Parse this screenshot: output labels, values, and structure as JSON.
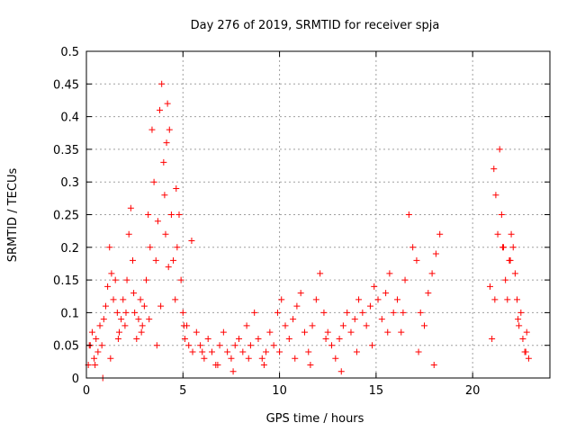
{
  "chart_data": {
    "type": "scatter",
    "title": "Day 276 of 2019, SRMTID for receiver spja",
    "xlabel": "GPS time / hours",
    "ylabel": "SRMTID / TECUs",
    "xlim": [
      0,
      24
    ],
    "ylim": [
      0,
      0.5
    ],
    "x_ticks": [
      0,
      5,
      10,
      15,
      20
    ],
    "x_tick_labels": [
      "0",
      "5",
      "10",
      "15",
      "20"
    ],
    "y_ticks": [
      0,
      0.05,
      0.1,
      0.15,
      0.2,
      0.25,
      0.3,
      0.35,
      0.4,
      0.45,
      0.5
    ],
    "y_tick_labels": [
      "0",
      "0.05",
      "0.1",
      "0.15",
      "0.2",
      "0.25",
      "0.3",
      "0.35",
      "0.4",
      "0.45",
      "0.5"
    ],
    "grid": true,
    "marker": "+",
    "color": "#ff0000",
    "series": [
      {
        "name": "SRMTID",
        "x": [
          0.1,
          0.2,
          0.3,
          0.4,
          0.5,
          0.6,
          0.7,
          0.8,
          0.9,
          1.0,
          1.1,
          1.2,
          1.3,
          1.4,
          1.5,
          1.6,
          1.7,
          1.8,
          1.9,
          2.0,
          2.1,
          2.2,
          2.3,
          2.4,
          2.5,
          2.6,
          2.7,
          2.8,
          2.9,
          3.0,
          3.1,
          3.2,
          3.3,
          3.4,
          3.5,
          3.6,
          3.7,
          3.8,
          3.9,
          4.0,
          4.05,
          4.1,
          4.15,
          4.2,
          4.3,
          4.4,
          4.5,
          4.6,
          4.7,
          4.8,
          4.9,
          5.0,
          5.1,
          5.2,
          5.3,
          5.5,
          5.7,
          5.9,
          6.1,
          6.3,
          6.5,
          6.7,
          6.9,
          7.1,
          7.3,
          7.5,
          7.7,
          7.9,
          8.1,
          8.3,
          8.5,
          8.7,
          8.9,
          9.1,
          9.3,
          9.5,
          9.7,
          9.9,
          10.1,
          10.3,
          10.5,
          10.7,
          10.9,
          11.1,
          11.3,
          11.5,
          11.7,
          11.9,
          12.1,
          12.3,
          12.5,
          12.7,
          12.9,
          13.1,
          13.3,
          13.5,
          13.7,
          13.9,
          14.1,
          14.3,
          14.5,
          14.7,
          14.9,
          15.1,
          15.3,
          15.5,
          15.7,
          15.9,
          16.1,
          16.3,
          16.5,
          16.7,
          16.9,
          17.1,
          17.3,
          17.5,
          17.7,
          17.9,
          18.1,
          18.3,
          20.9,
          21.0,
          21.1,
          21.2,
          21.3,
          21.4,
          21.5,
          21.6,
          21.7,
          21.8,
          21.9,
          22.0,
          22.1,
          22.2,
          22.3,
          22.4,
          22.5,
          22.6,
          22.7,
          22.8,
          22.9,
          0.15,
          0.45,
          0.85,
          1.25,
          1.65,
          2.05,
          2.45,
          2.85,
          3.25,
          3.65,
          3.85,
          4.25,
          4.65,
          5.05,
          5.45,
          6.0,
          6.8,
          7.6,
          8.4,
          9.2,
          10.0,
          10.8,
          11.6,
          12.4,
          13.2,
          14.0,
          14.8,
          15.6,
          16.4,
          17.2,
          18.0,
          21.15,
          21.55,
          21.95,
          22.35,
          22.75
        ],
        "y": [
          0.02,
          0.05,
          0.07,
          0.03,
          0.06,
          0.04,
          0.08,
          0.05,
          0.09,
          0.11,
          0.14,
          0.2,
          0.16,
          0.12,
          0.15,
          0.1,
          0.07,
          0.09,
          0.12,
          0.08,
          0.15,
          0.22,
          0.26,
          0.18,
          0.1,
          0.06,
          0.09,
          0.12,
          0.08,
          0.11,
          0.15,
          0.25,
          0.2,
          0.38,
          0.3,
          0.18,
          0.24,
          0.41,
          0.45,
          0.33,
          0.28,
          0.22,
          0.36,
          0.42,
          0.38,
          0.25,
          0.18,
          0.12,
          0.2,
          0.25,
          0.15,
          0.1,
          0.06,
          0.08,
          0.05,
          0.04,
          0.07,
          0.05,
          0.03,
          0.06,
          0.04,
          0.02,
          0.05,
          0.07,
          0.04,
          0.03,
          0.05,
          0.06,
          0.04,
          0.08,
          0.05,
          0.1,
          0.06,
          0.03,
          0.04,
          0.07,
          0.05,
          0.1,
          0.12,
          0.08,
          0.06,
          0.09,
          0.11,
          0.13,
          0.07,
          0.04,
          0.08,
          0.12,
          0.16,
          0.1,
          0.07,
          0.05,
          0.03,
          0.06,
          0.08,
          0.1,
          0.07,
          0.09,
          0.12,
          0.1,
          0.08,
          0.11,
          0.14,
          0.12,
          0.09,
          0.13,
          0.16,
          0.1,
          0.12,
          0.07,
          0.15,
          0.25,
          0.2,
          0.18,
          0.1,
          0.08,
          0.13,
          0.16,
          0.19,
          0.22,
          0.14,
          0.06,
          0.32,
          0.28,
          0.22,
          0.35,
          0.25,
          0.2,
          0.15,
          0.12,
          0.18,
          0.22,
          0.2,
          0.16,
          0.12,
          0.08,
          0.1,
          0.06,
          0.04,
          0.07,
          0.03,
          0.05,
          0.02,
          0.0,
          0.03,
          0.06,
          0.1,
          0.13,
          0.07,
          0.09,
          0.05,
          0.11,
          0.17,
          0.29,
          0.08,
          0.21,
          0.04,
          0.02,
          0.01,
          0.03,
          0.02,
          0.04,
          0.03,
          0.02,
          0.06,
          0.01,
          0.04,
          0.05,
          0.07,
          0.1,
          0.04,
          0.02,
          0.12,
          0.2,
          0.18,
          0.09,
          0.04
        ]
      }
    ]
  }
}
